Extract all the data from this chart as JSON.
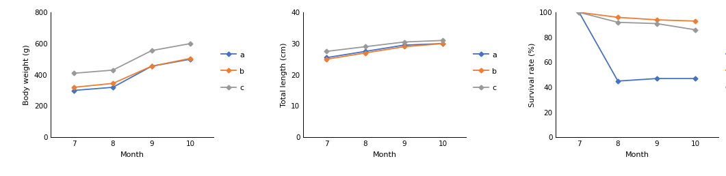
{
  "months": [
    7,
    8,
    9,
    10
  ],
  "bw_a": [
    300,
    320,
    455,
    500
  ],
  "bw_b": [
    320,
    345,
    455,
    505
  ],
  "bw_c": [
    410,
    430,
    555,
    600
  ],
  "bw_ylim": [
    0,
    800
  ],
  "bw_yticks": [
    0,
    200,
    400,
    600,
    800
  ],
  "bw_ylabel": "Body weight (g)",
  "tl_a": [
    25.5,
    27.5,
    29.5,
    30
  ],
  "tl_b": [
    25,
    27,
    29,
    30
  ],
  "tl_c": [
    27.5,
    29,
    30.5,
    31
  ],
  "tl_ylim": [
    0,
    40
  ],
  "tl_yticks": [
    0,
    10,
    20,
    30,
    40
  ],
  "tl_ylabel": "Total length (cm)",
  "sr_a": [
    100,
    45,
    47,
    47
  ],
  "sr_b": [
    100,
    96,
    94,
    93
  ],
  "sr_c": [
    100,
    92,
    91,
    86
  ],
  "sr_ylim": [
    0,
    100
  ],
  "sr_yticks": [
    0,
    20,
    40,
    60,
    80,
    100
  ],
  "sr_ylabel": "Survival rate (%)",
  "xlabel": "Month",
  "xticks": [
    7,
    8,
    9,
    10
  ],
  "color_a": "#4472C4",
  "color_b": "#ED7D31",
  "color_c": "#999999",
  "marker": "D",
  "markersize": 3.5,
  "linewidth": 1.3,
  "fontsize_label": 8,
  "fontsize_tick": 7.5,
  "fontsize_legend": 8
}
